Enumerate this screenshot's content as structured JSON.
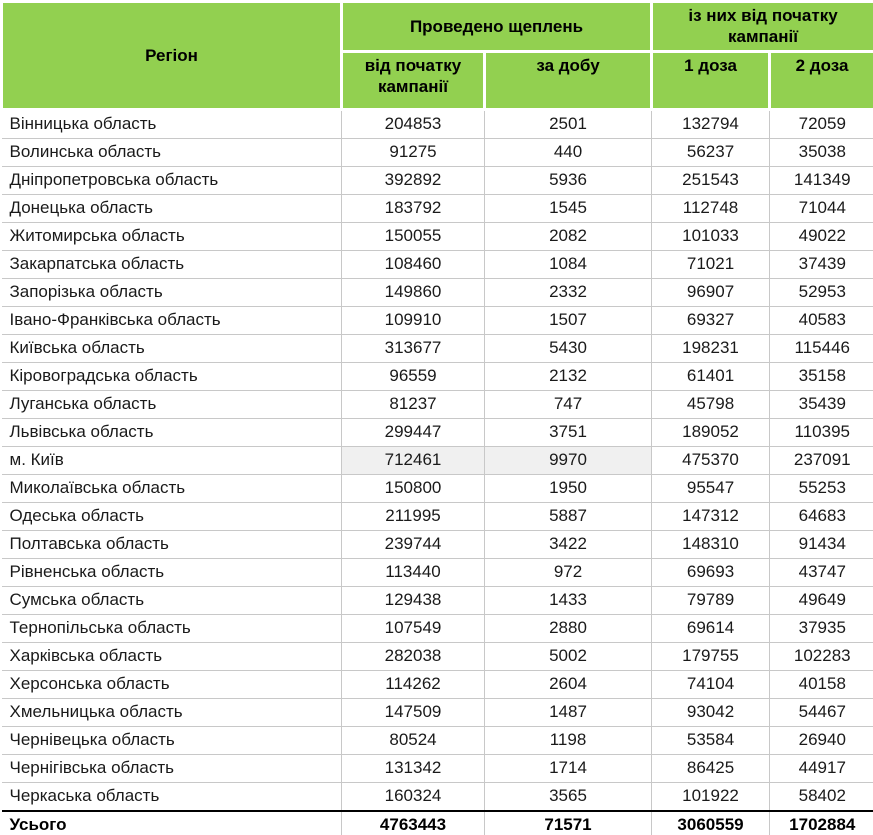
{
  "table": {
    "header": {
      "region": "Регіон",
      "group_vaccinations": "Проведено щеплень",
      "group_since_start": "із них від початку кампанії",
      "sub_since_start": "від початку кампанії",
      "sub_per_day": "за добу",
      "sub_dose1": "1 доза",
      "sub_dose2": "2 доза"
    },
    "rows": [
      {
        "region": "Вінницька область",
        "total": "204853",
        "daily": "2501",
        "dose1": "132794",
        "dose2": "72059"
      },
      {
        "region": "Волинська область",
        "total": "91275",
        "daily": "440",
        "dose1": "56237",
        "dose2": "35038"
      },
      {
        "region": "Дніпропетровська область",
        "total": "392892",
        "daily": "5936",
        "dose1": "251543",
        "dose2": "141349"
      },
      {
        "region": "Донецька область",
        "total": "183792",
        "daily": "1545",
        "dose1": "112748",
        "dose2": "71044"
      },
      {
        "region": "Житомирська область",
        "total": "150055",
        "daily": "2082",
        "dose1": "101033",
        "dose2": "49022"
      },
      {
        "region": "Закарпатська область",
        "total": "108460",
        "daily": "1084",
        "dose1": "71021",
        "dose2": "37439"
      },
      {
        "region": "Запорізька область",
        "total": "149860",
        "daily": "2332",
        "dose1": "96907",
        "dose2": "52953"
      },
      {
        "region": "Івано-Франківська область",
        "total": "109910",
        "daily": "1507",
        "dose1": "69327",
        "dose2": "40583"
      },
      {
        "region": "Київська область",
        "total": "313677",
        "daily": "5430",
        "dose1": "198231",
        "dose2": "115446"
      },
      {
        "region": "Кіровоградська область",
        "total": "96559",
        "daily": "2132",
        "dose1": "61401",
        "dose2": "35158"
      },
      {
        "region": "Луганська область",
        "total": "81237",
        "daily": "747",
        "dose1": "45798",
        "dose2": "35439"
      },
      {
        "region": "Львівська область",
        "total": "299447",
        "daily": "3751",
        "dose1": "189052",
        "dose2": "110395"
      },
      {
        "region": "м. Київ",
        "total": "712461",
        "daily": "9970",
        "dose1": "475370",
        "dose2": "237091",
        "highlight": true
      },
      {
        "region": "Миколаївська область",
        "total": "150800",
        "daily": "1950",
        "dose1": "95547",
        "dose2": "55253"
      },
      {
        "region": "Одеська область",
        "total": "211995",
        "daily": "5887",
        "dose1": "147312",
        "dose2": "64683"
      },
      {
        "region": "Полтавська область",
        "total": "239744",
        "daily": "3422",
        "dose1": "148310",
        "dose2": "91434"
      },
      {
        "region": "Рівненська область",
        "total": "113440",
        "daily": "972",
        "dose1": "69693",
        "dose2": "43747"
      },
      {
        "region": "Сумська область",
        "total": "129438",
        "daily": "1433",
        "dose1": "79789",
        "dose2": "49649"
      },
      {
        "region": "Тернопільська область",
        "total": "107549",
        "daily": "2880",
        "dose1": "69614",
        "dose2": "37935"
      },
      {
        "region": "Харківська область",
        "total": "282038",
        "daily": "5002",
        "dose1": "179755",
        "dose2": "102283"
      },
      {
        "region": "Херсонська область",
        "total": "114262",
        "daily": "2604",
        "dose1": "74104",
        "dose2": "40158"
      },
      {
        "region": "Хмельницька область",
        "total": "147509",
        "daily": "1487",
        "dose1": "93042",
        "dose2": "54467"
      },
      {
        "region": "Чернівецька область",
        "total": "80524",
        "daily": "1198",
        "dose1": "53584",
        "dose2": "26940"
      },
      {
        "region": "Чернігівська область",
        "total": "131342",
        "daily": "1714",
        "dose1": "86425",
        "dose2": "44917"
      },
      {
        "region": "Черкаська область",
        "total": "160324",
        "daily": "3565",
        "dose1": "101922",
        "dose2": "58402"
      }
    ],
    "total_row": {
      "region": "Усього",
      "total": "4763443",
      "daily": "71571",
      "dose1": "3060559",
      "dose2": "1702884"
    },
    "colors": {
      "header_bg": "#92d050",
      "row_highlight_bg": "#f0f0f0",
      "grid_border": "#c8c8c8",
      "total_top_border": "#000000"
    }
  }
}
